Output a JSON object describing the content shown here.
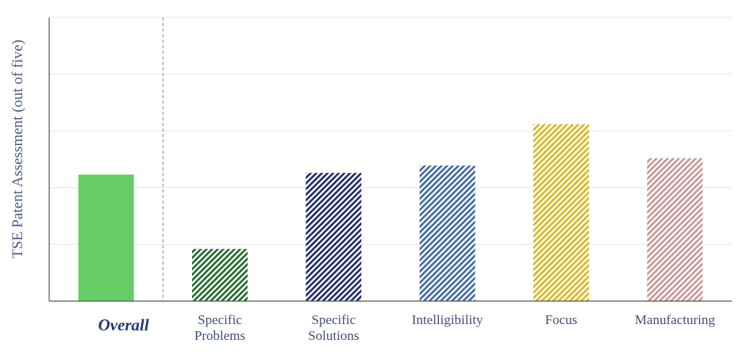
{
  "chart_data": {
    "type": "bar",
    "title": "",
    "xlabel": "",
    "ylabel": "TSE Patent Assessment (out of five)",
    "ylim": [
      0,
      5
    ],
    "grid": true,
    "legend": "none",
    "categories": [
      "Overall",
      "Specific Problems",
      "Specific Solutions",
      "Intelligibility",
      "Focus",
      "Manufacturing"
    ],
    "category_lines": [
      [
        "Overall"
      ],
      [
        "Specific",
        "Problems"
      ],
      [
        "Specific",
        "Solutions"
      ],
      [
        "Intelligibility"
      ],
      [
        "Focus"
      ],
      [
        "Manufacturing"
      ]
    ],
    "values": [
      2.23,
      0.92,
      2.26,
      2.39,
      3.12,
      2.52
    ],
    "colors": [
      "#66cc66",
      "#1f6b2a",
      "#1f2a6b",
      "#3f6aa0",
      "#d8b81e",
      "#c89696"
    ],
    "patterns": [
      "solid",
      "hatch",
      "hatch",
      "hatch",
      "hatch",
      "hatch"
    ],
    "highlight_category": "Overall",
    "divider_after_category": "Overall"
  }
}
